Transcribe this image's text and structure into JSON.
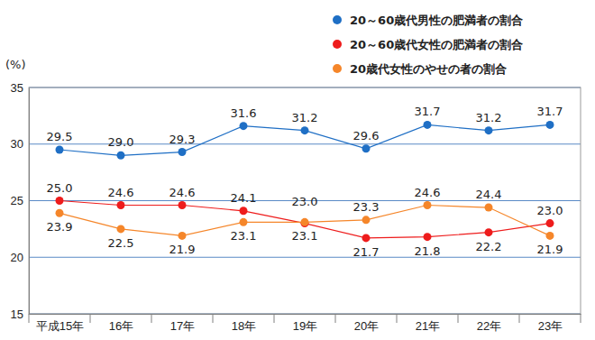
{
  "chart_data": {
    "type": "line",
    "y_label": "(%)",
    "categories": [
      "平成15年",
      "16年",
      "17年",
      "18年",
      "19年",
      "20年",
      "21年",
      "22年",
      "23年"
    ],
    "series": [
      {
        "name": "20～60歳代男性の肥満者の割合",
        "color": "#1f6fc5",
        "marker": "circle",
        "values": [
          29.5,
          29.0,
          29.3,
          31.6,
          31.2,
          29.6,
          31.7,
          31.2,
          31.7
        ]
      },
      {
        "name": "20～60歳代女性の肥満者の割合",
        "color": "#ee1c1c",
        "marker": "circle",
        "values": [
          25.0,
          24.6,
          24.6,
          24.1,
          23.0,
          21.7,
          21.8,
          22.2,
          23.0
        ]
      },
      {
        "name": "20歳代女性のやせの者の割合",
        "color": "#f5862a",
        "marker": "circle",
        "values": [
          23.9,
          22.5,
          21.9,
          23.1,
          23.1,
          23.3,
          24.6,
          24.4,
          21.9
        ]
      }
    ],
    "ylim": [
      15,
      35
    ],
    "yticks": [
      15,
      20,
      25,
      30,
      35
    ],
    "grid": true,
    "legend": "upper right",
    "data_labels": true
  }
}
